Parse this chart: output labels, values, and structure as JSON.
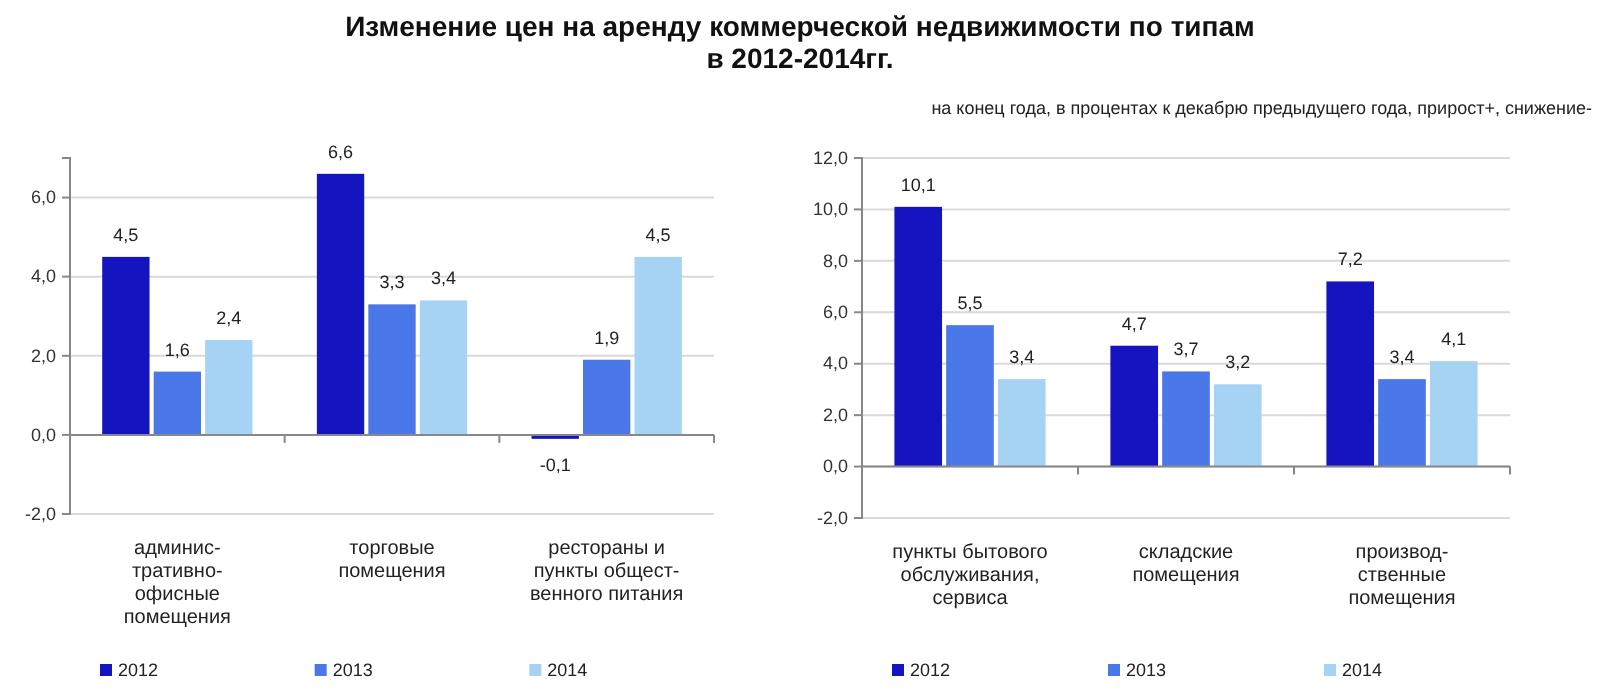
{
  "chart_data": [
    {
      "type": "bar",
      "title": "Изменение цен на аренду коммерческой недвижимости по типам\nв 2012-2014гг.",
      "categories": [
        "админис-\nтративно-\nофисные\nпомещения",
        "торговые\nпомещения",
        "рестораны и\nпункты общест-\nвенного питания"
      ],
      "series": [
        {
          "name": "2012",
          "color": "#1414c0",
          "values": [
            4.5,
            6.6,
            -0.1
          ],
          "value_labels": [
            "4,5",
            "6,6",
            "-0,1"
          ]
        },
        {
          "name": "2013",
          "color": "#4a78e8",
          "values": [
            1.6,
            3.3,
            1.9
          ],
          "value_labels": [
            "1,6",
            "3,3",
            "1,9"
          ]
        },
        {
          "name": "2014",
          "color": "#a6d2f4",
          "values": [
            2.4,
            3.4,
            4.5
          ],
          "value_labels": [
            "2,4",
            "3,4",
            "4,5"
          ]
        }
      ],
      "ylim": [
        -2,
        7
      ],
      "yticks": [
        {
          "value": -2,
          "label": "-2,0"
        },
        {
          "value": 0,
          "label": "0,0"
        },
        {
          "value": 2,
          "label": "2,0"
        },
        {
          "value": 4,
          "label": "4,0"
        },
        {
          "value": 6,
          "label": "6,0"
        }
      ],
      "grid": "y",
      "legend": "bottom"
    },
    {
      "type": "bar",
      "subtitle": "на конец года, в процентах к декабрю предыдущего года, прирост+, снижение-",
      "categories": [
        "пункты бытового\nобслуживания,\nсервиса",
        "складские\nпомещения",
        "производ-\nственные\nпомещения"
      ],
      "series": [
        {
          "name": "2012",
          "color": "#1414c0",
          "values": [
            10.1,
            4.7,
            7.2
          ],
          "value_labels": [
            "10,1",
            "4,7",
            "7,2"
          ]
        },
        {
          "name": "2013",
          "color": "#4a78e8",
          "values": [
            5.5,
            3.7,
            3.4
          ],
          "value_labels": [
            "5,5",
            "3,7",
            "3,4"
          ]
        },
        {
          "name": "2014",
          "color": "#a6d2f4",
          "values": [
            3.4,
            3.2,
            4.1
          ],
          "value_labels": [
            "3,4",
            "3,2",
            "4,1"
          ]
        }
      ],
      "ylim": [
        -2,
        12
      ],
      "yticks": [
        {
          "value": -2,
          "label": "-2,0"
        },
        {
          "value": 0,
          "label": "0,0"
        },
        {
          "value": 2,
          "label": "2,0"
        },
        {
          "value": 4,
          "label": "4,0"
        },
        {
          "value": 6,
          "label": "6,0"
        },
        {
          "value": 8,
          "label": "8,0"
        },
        {
          "value": 10,
          "label": "10,0"
        },
        {
          "value": 12,
          "label": "12,0"
        }
      ],
      "grid": "y",
      "legend": "bottom"
    }
  ]
}
